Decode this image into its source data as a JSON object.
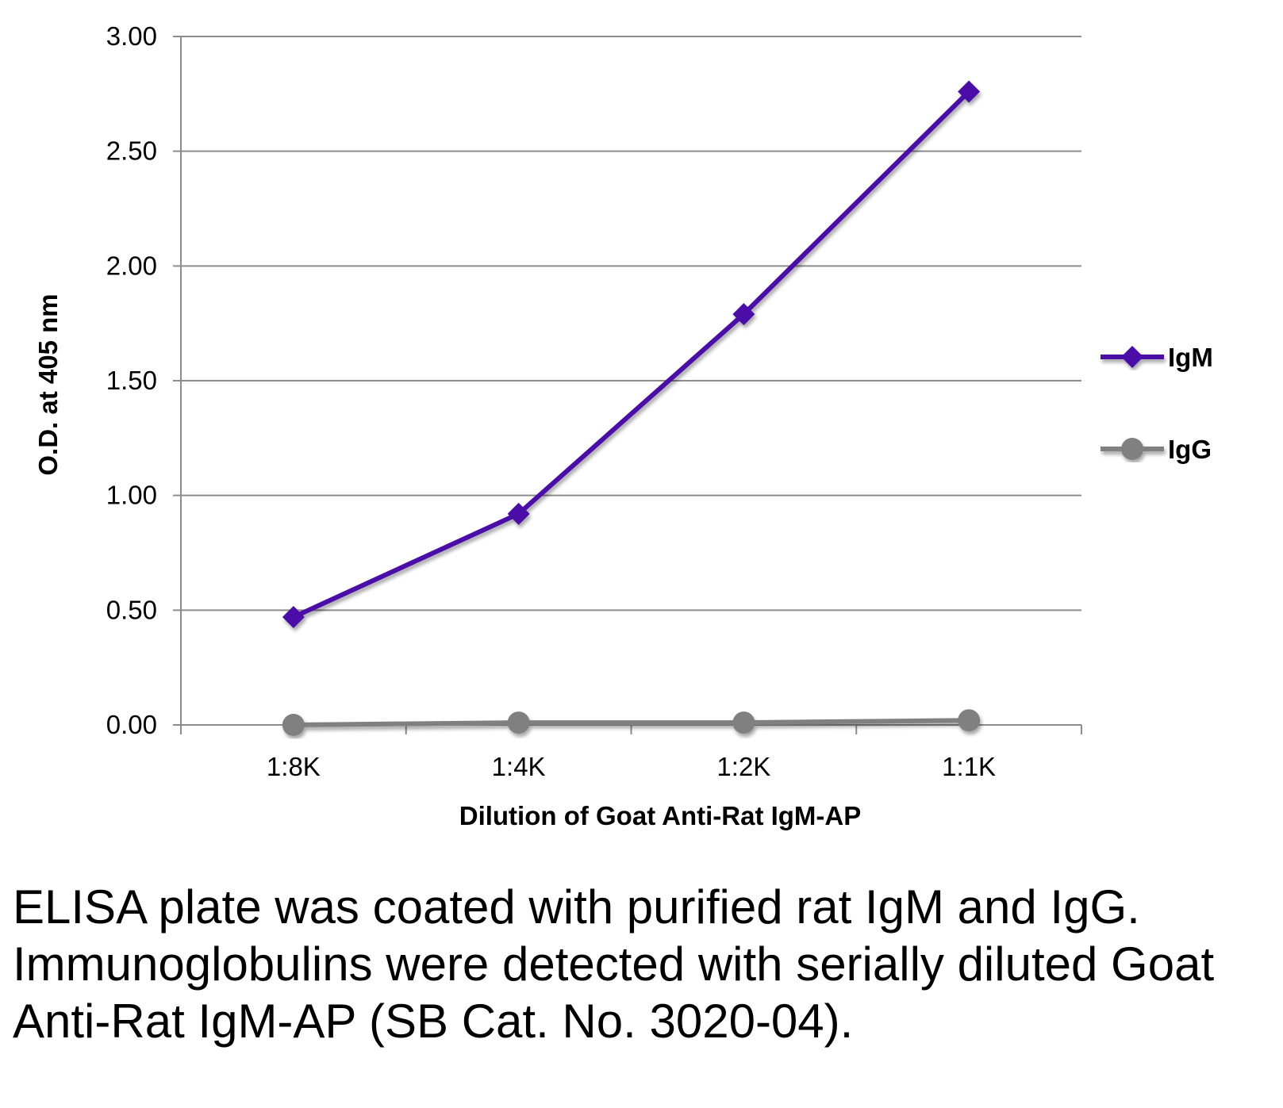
{
  "chart_data": {
    "type": "line",
    "categories": [
      "1:8K",
      "1:4K",
      "1:2K",
      "1:1K"
    ],
    "series": [
      {
        "name": "IgM",
        "values": [
          0.47,
          0.92,
          1.79,
          2.76
        ],
        "color": "#4B0DA8",
        "marker": "diamond"
      },
      {
        "name": "IgG",
        "values": [
          0.0,
          0.01,
          0.01,
          0.02
        ],
        "color": "#808080",
        "marker": "circle"
      }
    ],
    "title": "",
    "xlabel": "Dilution of Goat Anti-Rat IgM-AP",
    "ylabel": "O.D. at 405 nm",
    "ylim": [
      0,
      3
    ],
    "yticks": [
      "0.00",
      "0.50",
      "1.00",
      "1.50",
      "2.00",
      "2.50",
      "3.00"
    ],
    "grid": true,
    "legend": "right"
  },
  "caption": "ELISA plate was coated with purified rat IgM and IgG.  Immunoglobulins were detected with serially diluted Goat Anti-Rat IgM-AP (SB Cat. No. 3020-04)."
}
